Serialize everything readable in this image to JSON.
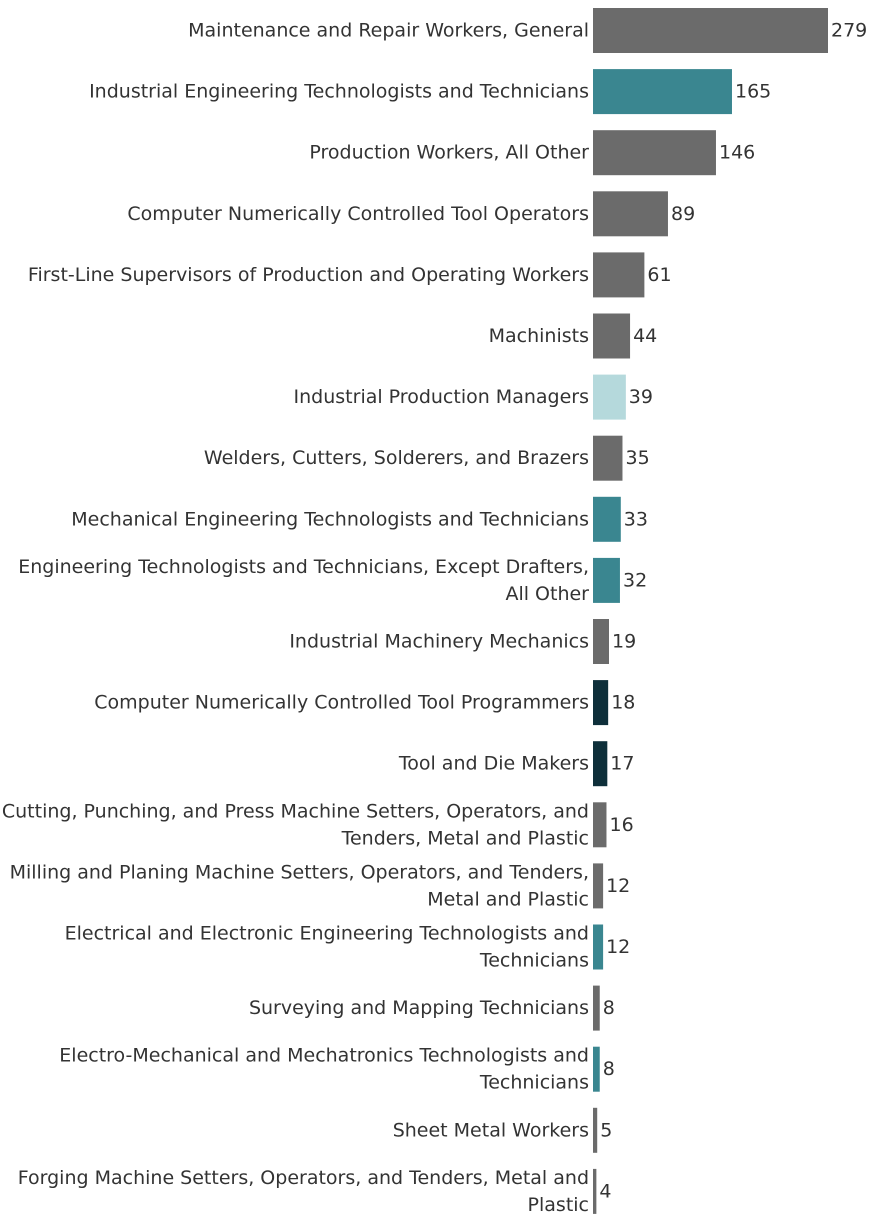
{
  "chart_data": {
    "type": "bar",
    "orientation": "horizontal",
    "title": "",
    "xlabel": "",
    "ylabel": "",
    "grid": false,
    "legend": "none",
    "xlim": [
      0,
      279
    ],
    "bars": [
      {
        "label": [
          "Maintenance and Repair Workers, General"
        ],
        "value": 279,
        "color": "#6b6b6b"
      },
      {
        "label": [
          "Industrial Engineering Technologists and Technicians"
        ],
        "value": 165,
        "color": "#3a8690"
      },
      {
        "label": [
          "Production Workers, All Other"
        ],
        "value": 146,
        "color": "#6b6b6b"
      },
      {
        "label": [
          "Computer Numerically Controlled Tool Operators"
        ],
        "value": 89,
        "color": "#6b6b6b"
      },
      {
        "label": [
          "First-Line Supervisors of Production and Operating Workers"
        ],
        "value": 61,
        "color": "#6b6b6b"
      },
      {
        "label": [
          "Machinists"
        ],
        "value": 44,
        "color": "#6b6b6b"
      },
      {
        "label": [
          "Industrial Production Managers"
        ],
        "value": 39,
        "color": "#b5d9dc"
      },
      {
        "label": [
          "Welders, Cutters, Solderers, and Brazers"
        ],
        "value": 35,
        "color": "#6b6b6b"
      },
      {
        "label": [
          "Mechanical Engineering Technologists and Technicians"
        ],
        "value": 33,
        "color": "#3a8690"
      },
      {
        "label": [
          "Engineering Technologists and Technicians, Except Drafters,",
          "All Other"
        ],
        "value": 32,
        "color": "#3a8690"
      },
      {
        "label": [
          "Industrial Machinery Mechanics"
        ],
        "value": 19,
        "color": "#6b6b6b"
      },
      {
        "label": [
          "Computer Numerically Controlled Tool Programmers"
        ],
        "value": 18,
        "color": "#0e2f3a"
      },
      {
        "label": [
          "Tool and Die Makers"
        ],
        "value": 17,
        "color": "#0e2f3a"
      },
      {
        "label": [
          "Cutting, Punching, and Press Machine Setters, Operators, and",
          "Tenders, Metal and Plastic"
        ],
        "value": 16,
        "color": "#6b6b6b"
      },
      {
        "label": [
          "Milling and Planing Machine Setters, Operators, and Tenders,",
          "Metal and Plastic"
        ],
        "value": 12,
        "color": "#6b6b6b"
      },
      {
        "label": [
          "Electrical and Electronic Engineering Technologists and",
          "Technicians"
        ],
        "value": 12,
        "color": "#3a8690"
      },
      {
        "label": [
          "Surveying and Mapping Technicians"
        ],
        "value": 8,
        "color": "#6b6b6b"
      },
      {
        "label": [
          "Electro-Mechanical and Mechatronics Technologists and",
          "Technicians"
        ],
        "value": 8,
        "color": "#3a8690"
      },
      {
        "label": [
          "Sheet Metal Workers"
        ],
        "value": 5,
        "color": "#6b6b6b"
      },
      {
        "label": [
          "Forging Machine Setters, Operators, and Tenders, Metal and",
          "Plastic"
        ],
        "value": 4,
        "color": "#6b6b6b"
      }
    ]
  }
}
